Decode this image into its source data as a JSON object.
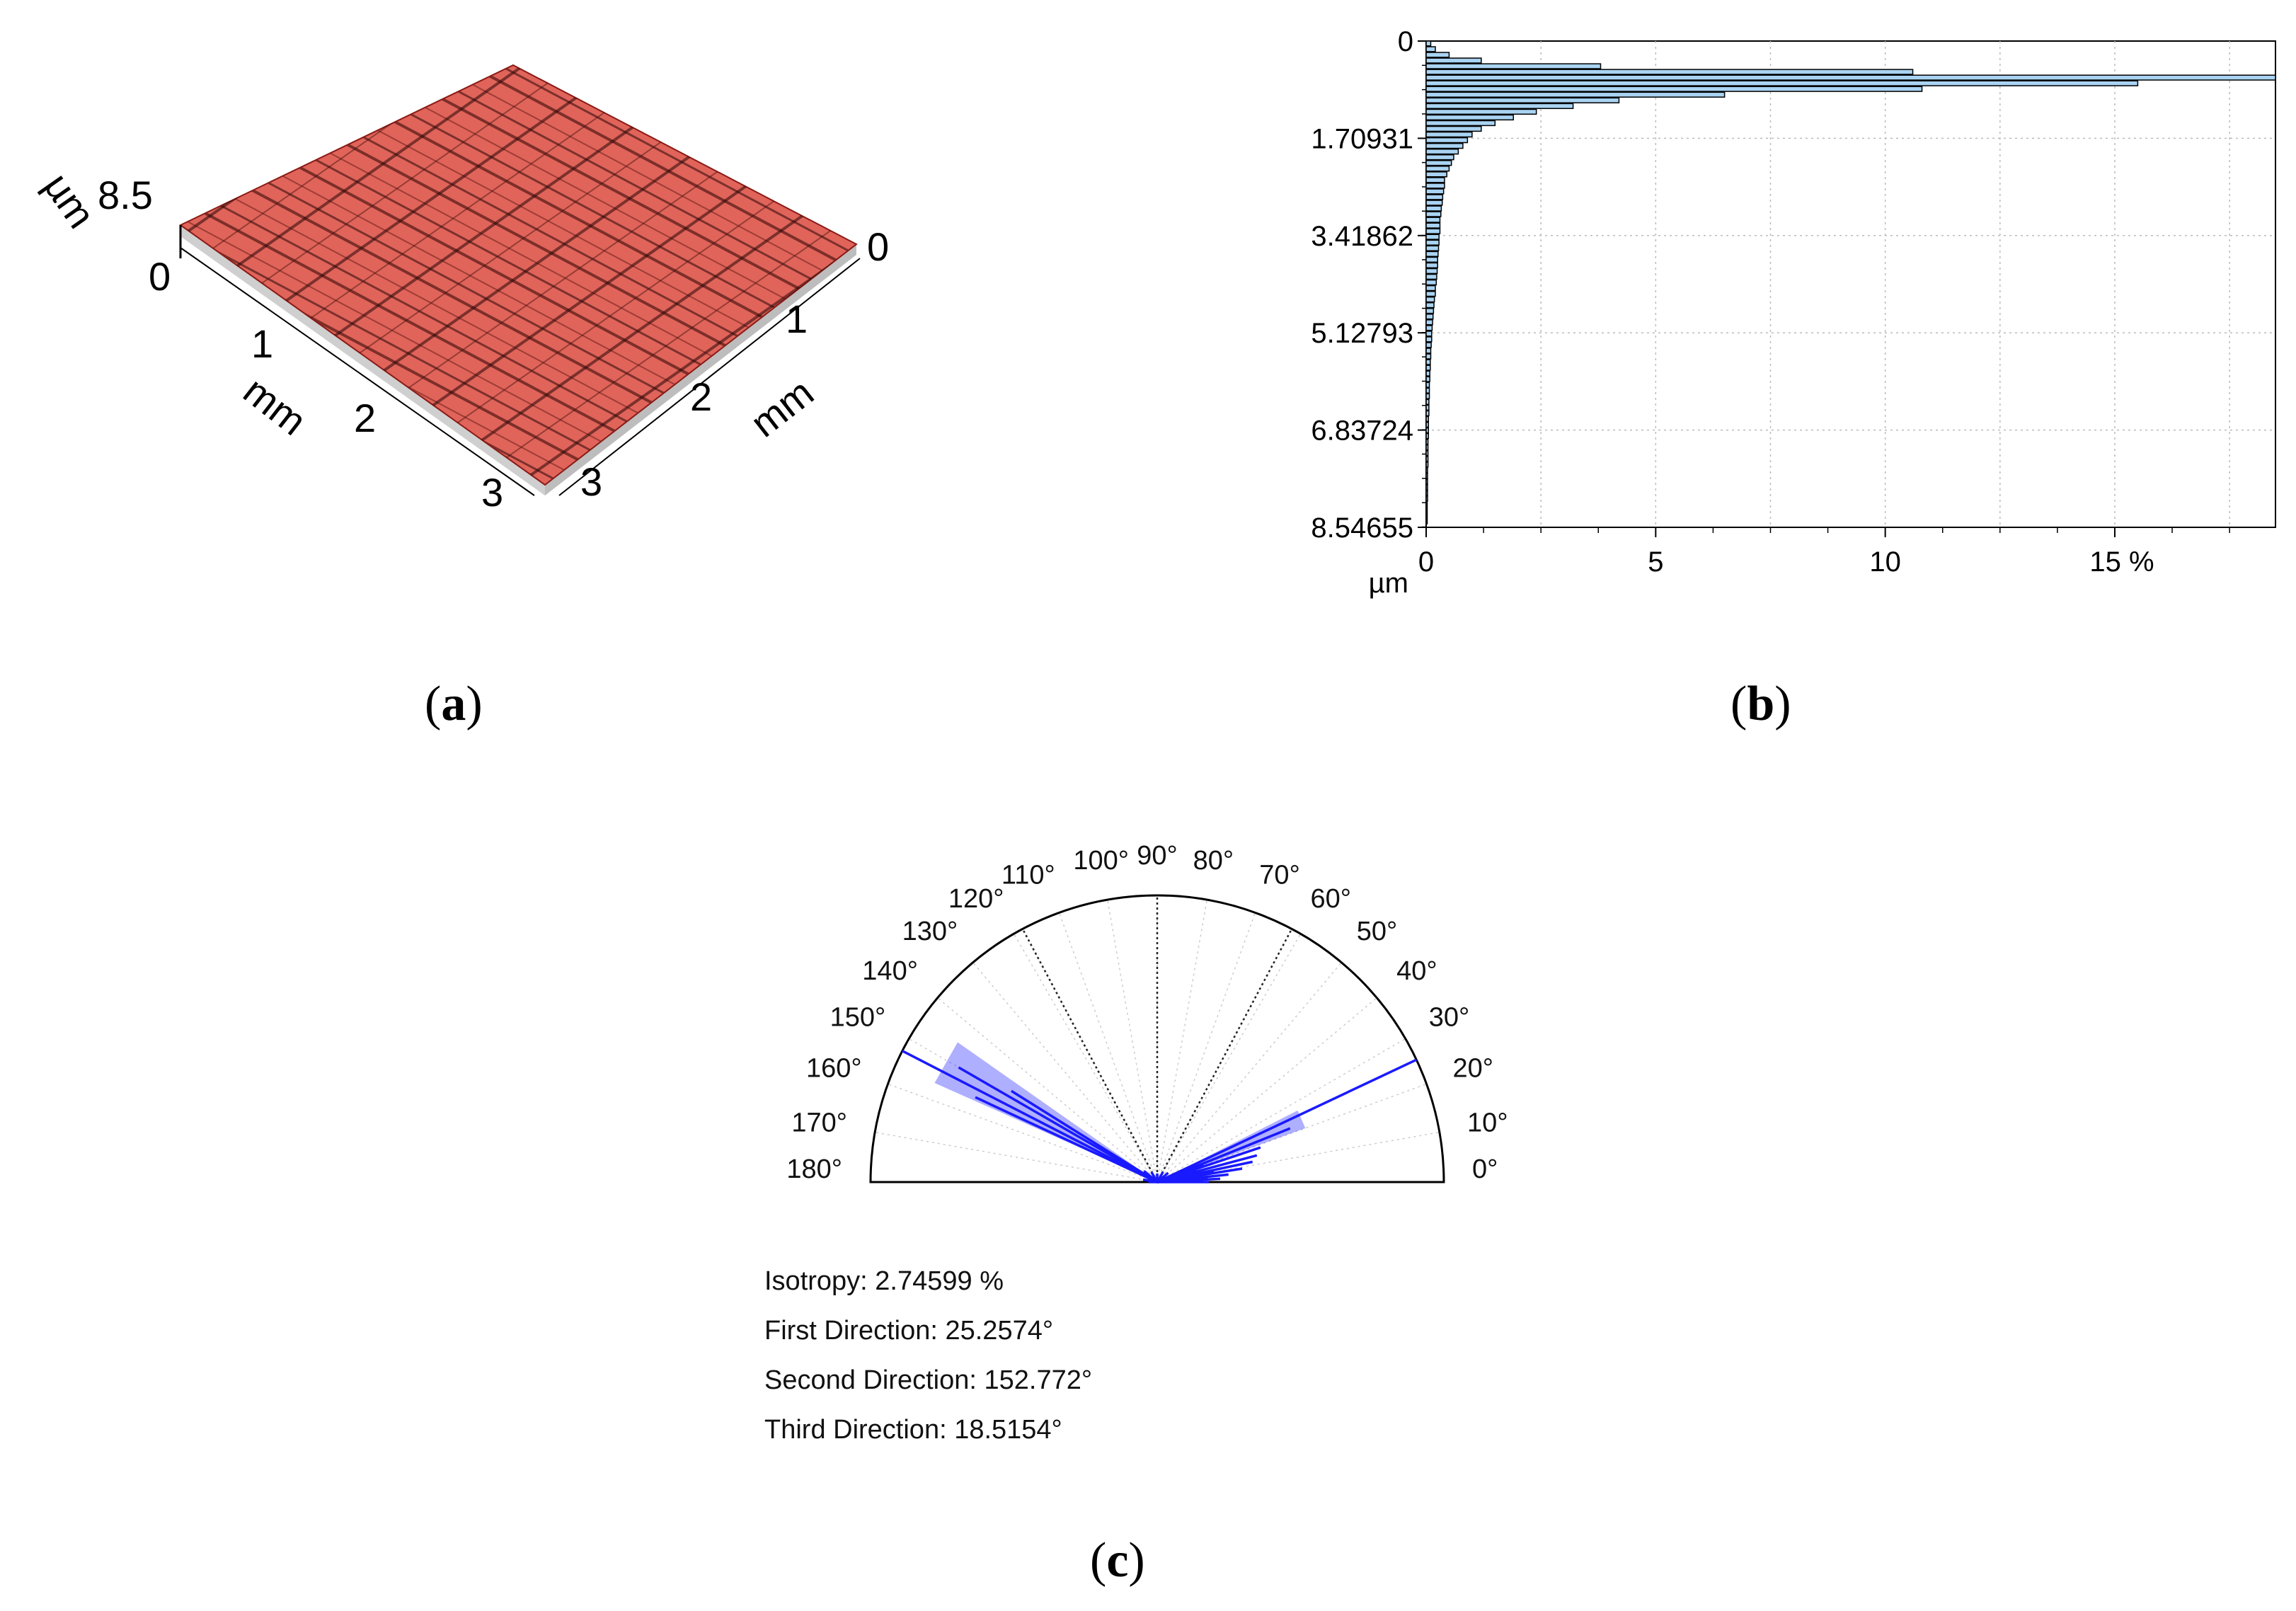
{
  "panel_a": {
    "caption_letter": "a",
    "z_unit": "µm",
    "z_max_label": "8.5",
    "z_min_label": "0",
    "x_unit": "mm",
    "x_ticks": [
      "0",
      "1",
      "2",
      "3"
    ],
    "y_unit": "mm",
    "y_ticks": [
      "0",
      "1",
      "2",
      "3"
    ],
    "surface_color": "#d9544a"
  },
  "panel_b": {
    "caption_letter": "b",
    "unit_label": "µm",
    "bar_color": "#a9d3f2",
    "outline_color": "#000000"
  },
  "panel_c": {
    "caption_letter": "c",
    "stats": {
      "isotropy": "Isotropy: 2.74599 %",
      "first": "First Direction: 25.2574°",
      "second": "Second Direction: 152.772°",
      "third": "Third Direction: 18.5154°"
    },
    "line_color": "#1a1aff"
  },
  "chart_data": [
    {
      "type": "bar",
      "orientation": "horizontal",
      "title": "",
      "ylabel": "µm",
      "xlabel": "",
      "y_tick_labels": [
        "0",
        "1.70931",
        "3.41862",
        "5.12793",
        "6.83724",
        "8.54655"
      ],
      "x_tick_labels": [
        "0",
        "5",
        "10",
        "15 %"
      ],
      "xlim": [
        0,
        18.5
      ],
      "ylim": [
        0,
        8.54655
      ],
      "grid": true,
      "depth": [
        0.05,
        0.15,
        0.25,
        0.35,
        0.45,
        0.55,
        0.65,
        0.75,
        0.85,
        0.95,
        1.05,
        1.15,
        1.25,
        1.35,
        1.45,
        1.55,
        1.65,
        1.75,
        1.85,
        1.95,
        2.05,
        2.15,
        2.25,
        2.35,
        2.45,
        2.55,
        2.65,
        2.75,
        2.85,
        2.95,
        3.05,
        3.15,
        3.25,
        3.35,
        3.45,
        3.55,
        3.65,
        3.75,
        3.85,
        3.95,
        4.05,
        4.15,
        4.25,
        4.35,
        4.45,
        4.55,
        4.65,
        4.75,
        4.85,
        4.95,
        5.05,
        5.15,
        5.25,
        5.35,
        5.45,
        5.55,
        5.65,
        5.75,
        5.85,
        5.95,
        6.05,
        6.15,
        6.25,
        6.35,
        6.45,
        6.55,
        6.65,
        6.75,
        6.85,
        6.95,
        7.05,
        7.15,
        7.25,
        7.35,
        7.45,
        7.55,
        7.65,
        7.75,
        7.85,
        7.95,
        8.05,
        8.15,
        8.25,
        8.35,
        8.45
      ],
      "values": [
        0.1,
        0.2,
        0.5,
        1.2,
        3.8,
        10.6,
        18.5,
        15.5,
        10.8,
        6.5,
        4.2,
        3.2,
        2.4,
        1.9,
        1.5,
        1.2,
        1.0,
        0.9,
        0.8,
        0.7,
        0.6,
        0.55,
        0.5,
        0.45,
        0.4,
        0.4,
        0.38,
        0.36,
        0.35,
        0.33,
        0.32,
        0.3,
        0.3,
        0.3,
        0.28,
        0.28,
        0.27,
        0.26,
        0.25,
        0.25,
        0.24,
        0.23,
        0.22,
        0.2,
        0.2,
        0.18,
        0.17,
        0.16,
        0.15,
        0.14,
        0.13,
        0.12,
        0.12,
        0.11,
        0.1,
        0.1,
        0.09,
        0.09,
        0.08,
        0.08,
        0.07,
        0.07,
        0.07,
        0.06,
        0.06,
        0.06,
        0.05,
        0.05,
        0.05,
        0.05,
        0.04,
        0.04,
        0.04,
        0.04,
        0.04,
        0.03,
        0.03,
        0.03,
        0.03,
        0.03,
        0.03,
        0.02,
        0.02,
        0.02,
        0.02
      ]
    },
    {
      "type": "polar",
      "title": "",
      "angle_labels": [
        "0°",
        "10°",
        "20°",
        "30°",
        "40°",
        "50°",
        "60°",
        "70°",
        "80°",
        "90°",
        "100°",
        "110°",
        "120°",
        "130°",
        "140°",
        "150°",
        "160°",
        "170°",
        "180°"
      ],
      "dotted_reference_angles": [
        25.2574,
        62,
        90,
        118,
        152.772
      ],
      "directions": [
        {
          "angle": 0,
          "r": 0.18
        },
        {
          "angle": 3,
          "r": 0.22
        },
        {
          "angle": 6,
          "r": 0.25
        },
        {
          "angle": 9,
          "r": 0.3
        },
        {
          "angle": 12,
          "r": 0.34
        },
        {
          "angle": 15,
          "r": 0.36
        },
        {
          "angle": 18.5154,
          "r": 0.38
        },
        {
          "angle": 22,
          "r": 0.5
        },
        {
          "angle": 25.2574,
          "r": 1.0
        },
        {
          "angle": 40,
          "r": 0.05
        },
        {
          "angle": 60,
          "r": 0.04
        },
        {
          "angle": 90,
          "r": 0.03
        },
        {
          "angle": 120,
          "r": 0.04
        },
        {
          "angle": 140,
          "r": 0.06
        },
        {
          "angle": 148,
          "r": 0.6
        },
        {
          "angle": 150,
          "r": 0.8
        },
        {
          "angle": 152.772,
          "r": 1.0
        },
        {
          "angle": 155,
          "r": 0.7
        },
        {
          "angle": 170,
          "r": 0.05
        },
        {
          "angle": 180,
          "r": 0.03
        }
      ],
      "isotropy_percent": 2.74599,
      "first_direction_deg": 25.2574,
      "second_direction_deg": 152.772,
      "third_direction_deg": 18.5154
    }
  ]
}
